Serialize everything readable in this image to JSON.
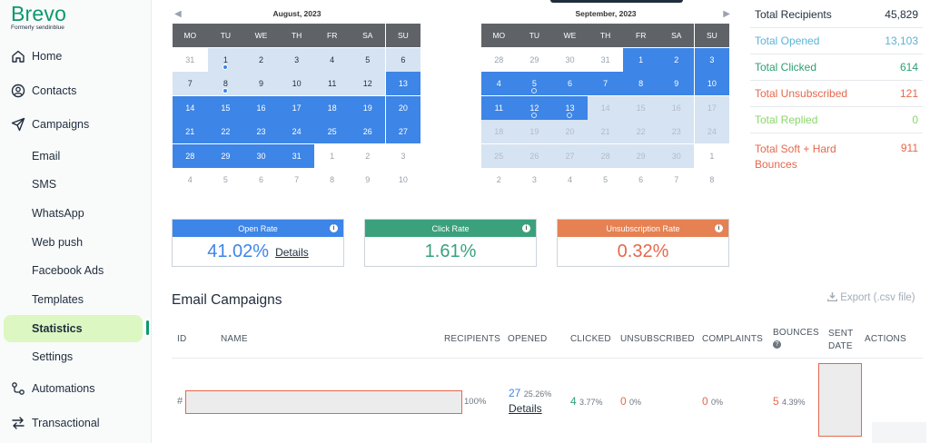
{
  "brand": {
    "name": "Brevo",
    "tagline": "Formerly sendinblue"
  },
  "sidebar": {
    "items": [
      {
        "label": "Home",
        "icon": "home-icon"
      },
      {
        "label": "Contacts",
        "icon": "contacts-icon"
      },
      {
        "label": "Campaigns",
        "icon": "send-icon"
      }
    ],
    "campaign_subitems": [
      "Email",
      "SMS",
      "WhatsApp",
      "Web push",
      "Facebook Ads",
      "Templates",
      "Statistics",
      "Settings"
    ],
    "active_subitem": "Statistics",
    "bottom_items": [
      {
        "label": "Automations",
        "icon": "automations-icon"
      },
      {
        "label": "Transactional",
        "icon": "transactional-icon"
      }
    ]
  },
  "calendars": {
    "weekdays": [
      "MO",
      "TU",
      "WE",
      "TH",
      "FR",
      "SA",
      "SU"
    ],
    "left": {
      "title": "August, 2023",
      "rows": [
        [
          {
            "d": "31",
            "s": "out"
          },
          {
            "d": "1",
            "s": "light",
            "dot": "fill"
          },
          {
            "d": "2",
            "s": "light"
          },
          {
            "d": "3",
            "s": "light"
          },
          {
            "d": "4",
            "s": "light"
          },
          {
            "d": "5",
            "s": "light"
          },
          {
            "d": "6",
            "s": "light"
          }
        ],
        [
          {
            "d": "7",
            "s": "light"
          },
          {
            "d": "8",
            "s": "light",
            "dot": "fill"
          },
          {
            "d": "9",
            "s": "light"
          },
          {
            "d": "10",
            "s": "light"
          },
          {
            "d": "11",
            "s": "light"
          },
          {
            "d": "12",
            "s": "light"
          },
          {
            "d": "13",
            "s": "sel"
          }
        ],
        [
          {
            "d": "14",
            "s": "sel"
          },
          {
            "d": "15",
            "s": "sel"
          },
          {
            "d": "16",
            "s": "sel"
          },
          {
            "d": "17",
            "s": "sel"
          },
          {
            "d": "18",
            "s": "sel"
          },
          {
            "d": "19",
            "s": "sel"
          },
          {
            "d": "20",
            "s": "sel"
          }
        ],
        [
          {
            "d": "21",
            "s": "sel"
          },
          {
            "d": "22",
            "s": "sel"
          },
          {
            "d": "23",
            "s": "sel"
          },
          {
            "d": "24",
            "s": "sel"
          },
          {
            "d": "25",
            "s": "sel"
          },
          {
            "d": "26",
            "s": "sel"
          },
          {
            "d": "27",
            "s": "sel"
          }
        ],
        [
          {
            "d": "28",
            "s": "sel"
          },
          {
            "d": "29",
            "s": "sel"
          },
          {
            "d": "30",
            "s": "sel"
          },
          {
            "d": "31",
            "s": "sel"
          },
          {
            "d": "1",
            "s": "out"
          },
          {
            "d": "2",
            "s": "out"
          },
          {
            "d": "3",
            "s": "out"
          }
        ],
        [
          {
            "d": "4",
            "s": "out"
          },
          {
            "d": "5",
            "s": "out"
          },
          {
            "d": "6",
            "s": "out"
          },
          {
            "d": "7",
            "s": "out"
          },
          {
            "d": "8",
            "s": "out"
          },
          {
            "d": "9",
            "s": "out"
          },
          {
            "d": "10",
            "s": "out"
          }
        ]
      ]
    },
    "right": {
      "title": "September, 2023",
      "rows": [
        [
          {
            "d": "28",
            "s": "out"
          },
          {
            "d": "29",
            "s": "out"
          },
          {
            "d": "30",
            "s": "out"
          },
          {
            "d": "31",
            "s": "out"
          },
          {
            "d": "1",
            "s": "sel"
          },
          {
            "d": "2",
            "s": "sel"
          },
          {
            "d": "3",
            "s": "sel"
          }
        ],
        [
          {
            "d": "4",
            "s": "sel"
          },
          {
            "d": "5",
            "s": "sel",
            "dot": "ring"
          },
          {
            "d": "6",
            "s": "sel"
          },
          {
            "d": "7",
            "s": "sel"
          },
          {
            "d": "8",
            "s": "sel"
          },
          {
            "d": "9",
            "s": "sel"
          },
          {
            "d": "10",
            "s": "sel"
          }
        ],
        [
          {
            "d": "11",
            "s": "sel"
          },
          {
            "d": "12",
            "s": "sel",
            "dot": "ring"
          },
          {
            "d": "13",
            "s": "sel",
            "dot": "ring"
          },
          {
            "d": "14",
            "s": "dim"
          },
          {
            "d": "15",
            "s": "dim"
          },
          {
            "d": "16",
            "s": "dim"
          },
          {
            "d": "17",
            "s": "dim"
          }
        ],
        [
          {
            "d": "18",
            "s": "dim"
          },
          {
            "d": "19",
            "s": "dim"
          },
          {
            "d": "20",
            "s": "dim"
          },
          {
            "d": "21",
            "s": "dim"
          },
          {
            "d": "22",
            "s": "dim"
          },
          {
            "d": "23",
            "s": "dim"
          },
          {
            "d": "24",
            "s": "dim"
          }
        ],
        [
          {
            "d": "25",
            "s": "dim"
          },
          {
            "d": "26",
            "s": "dim"
          },
          {
            "d": "27",
            "s": "dim"
          },
          {
            "d": "28",
            "s": "dim"
          },
          {
            "d": "29",
            "s": "dim"
          },
          {
            "d": "30",
            "s": "dim"
          },
          {
            "d": "1",
            "s": "out"
          }
        ],
        [
          {
            "d": "2",
            "s": "out"
          },
          {
            "d": "3",
            "s": "out"
          },
          {
            "d": "4",
            "s": "out"
          },
          {
            "d": "5",
            "s": "out"
          },
          {
            "d": "6",
            "s": "out"
          },
          {
            "d": "7",
            "s": "out"
          },
          {
            "d": "8",
            "s": "out"
          }
        ]
      ]
    }
  },
  "stats": [
    {
      "label": "Total Recipients",
      "value": "45,829",
      "color": "#1f2d3d"
    },
    {
      "label": "Total Opened",
      "value": "13,103",
      "color": "#5bb3d6"
    },
    {
      "label": "Total Clicked",
      "value": "614",
      "color": "#2e9e72"
    },
    {
      "label": "Total Unsubscribed",
      "value": "121",
      "color": "#e5684c"
    },
    {
      "label": "Total Replied",
      "value": "0",
      "color": "#8bd66b"
    }
  ],
  "stat_bounces": {
    "label_line1": "Total Soft + Hard",
    "label_line2": "Bounces",
    "value": "911",
    "color": "#e5684c"
  },
  "rates": {
    "open": {
      "title": "Open Rate",
      "value": "41.02%",
      "details": "Details",
      "head_color": "#3d85e6",
      "value_color": "#3d85e6"
    },
    "click": {
      "title": "Click Rate",
      "value": "1.61%",
      "head_color": "#3aa17c",
      "value_color": "#3aa17c"
    },
    "unsub": {
      "title": "Unsubscription Rate",
      "value": "0.32%",
      "head_color": "#e58152",
      "value_color": "#e5684c"
    }
  },
  "campaigns": {
    "title": "Email Campaigns",
    "export": "Export (.csv file)",
    "headers": {
      "id": "ID",
      "name": "NAME",
      "recipients": "RECIPIENTS",
      "opened": "OPENED",
      "clicked": "CLICKED",
      "unsubscribed": "UNSUBSCRIBED",
      "complaints": "COMPLAINTS",
      "bounces": "BOUNCES",
      "sent_line1": "SENT",
      "sent_line2": "DATE",
      "actions": "ACTIONS"
    },
    "row": {
      "id": "#",
      "recipients_pct": "100%",
      "opened_count": "27",
      "opened_pct": "25.26%",
      "opened_details": "Details",
      "clicked_count": "4",
      "clicked_pct": "3.77%",
      "unsub_count": "0",
      "unsub_pct": "0%",
      "complaints_count": "0",
      "complaints_pct": "0%",
      "bounces_count": "5",
      "bounces_pct": "4.39%"
    }
  }
}
